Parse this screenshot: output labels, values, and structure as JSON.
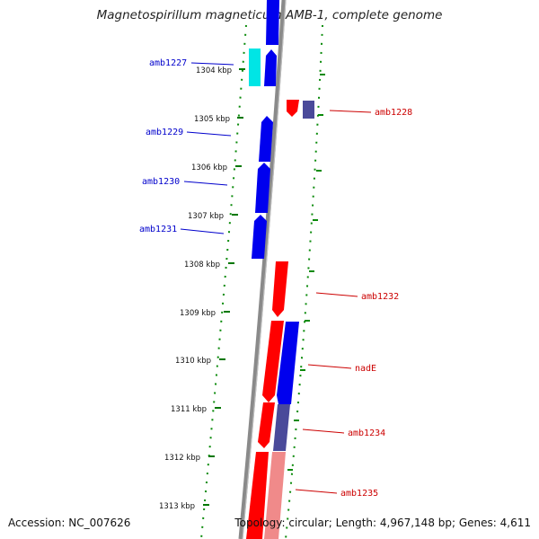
{
  "title": "Magnetospirillum magneticum AMB-1, complete genome",
  "footer": {
    "accession_label": "Accession: NC_007626",
    "topology_label": "Topology: circular; Length: 4,967,148 bp; Genes: 4,611"
  },
  "colors": {
    "forward_gene": "#ff0000",
    "reverse_gene": "#0000ee",
    "forward_label": "#cc0000",
    "reverse_label": "#0000cc",
    "cyan_gene": "#00e5e5",
    "slate_gene": "#4a4a9a",
    "pink_gene": "#f08a8a",
    "backbone": "#8a8a8a",
    "tick_mark": "#007700"
  },
  "ticks": [
    "1304 kbp",
    "1305 kbp",
    "1306 kbp",
    "1307 kbp",
    "1308 kbp",
    "1309 kbp",
    "1310 kbp",
    "1311 kbp",
    "1312 kbp",
    "1313 kbp"
  ],
  "gene_labels": [
    {
      "text": "amb1227",
      "side": "left"
    },
    {
      "text": "amb1228",
      "side": "right"
    },
    {
      "text": "amb1229",
      "side": "left"
    },
    {
      "text": "amb1230",
      "side": "left"
    },
    {
      "text": "amb1231",
      "side": "left"
    },
    {
      "text": "amb1232",
      "side": "right"
    },
    {
      "text": "nadE",
      "side": "right"
    },
    {
      "text": "amb1234",
      "side": "right"
    },
    {
      "text": "amb1235",
      "side": "right"
    }
  ]
}
